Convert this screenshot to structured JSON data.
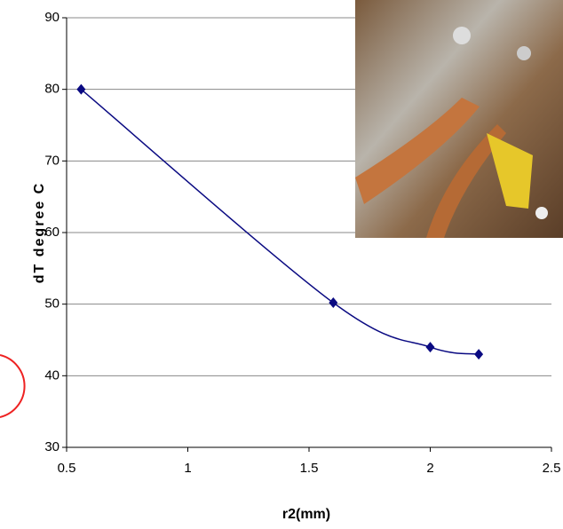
{
  "chart_data": {
    "type": "line",
    "x_label": "r2(mm)",
    "y_label": "dT degree C",
    "x": [
      0.56,
      1.6,
      2.0,
      2.2
    ],
    "values": [
      80,
      50.2,
      44,
      43
    ],
    "color": "#0a0a82",
    "xlim": [
      0.5,
      2.5
    ],
    "xticks": [
      0.5,
      1,
      1.5,
      2,
      2.5
    ],
    "ylim": [
      30,
      90
    ],
    "yticks": [
      30,
      40,
      50,
      60,
      70,
      80,
      90
    ],
    "grid": true,
    "smooth": true
  }
}
